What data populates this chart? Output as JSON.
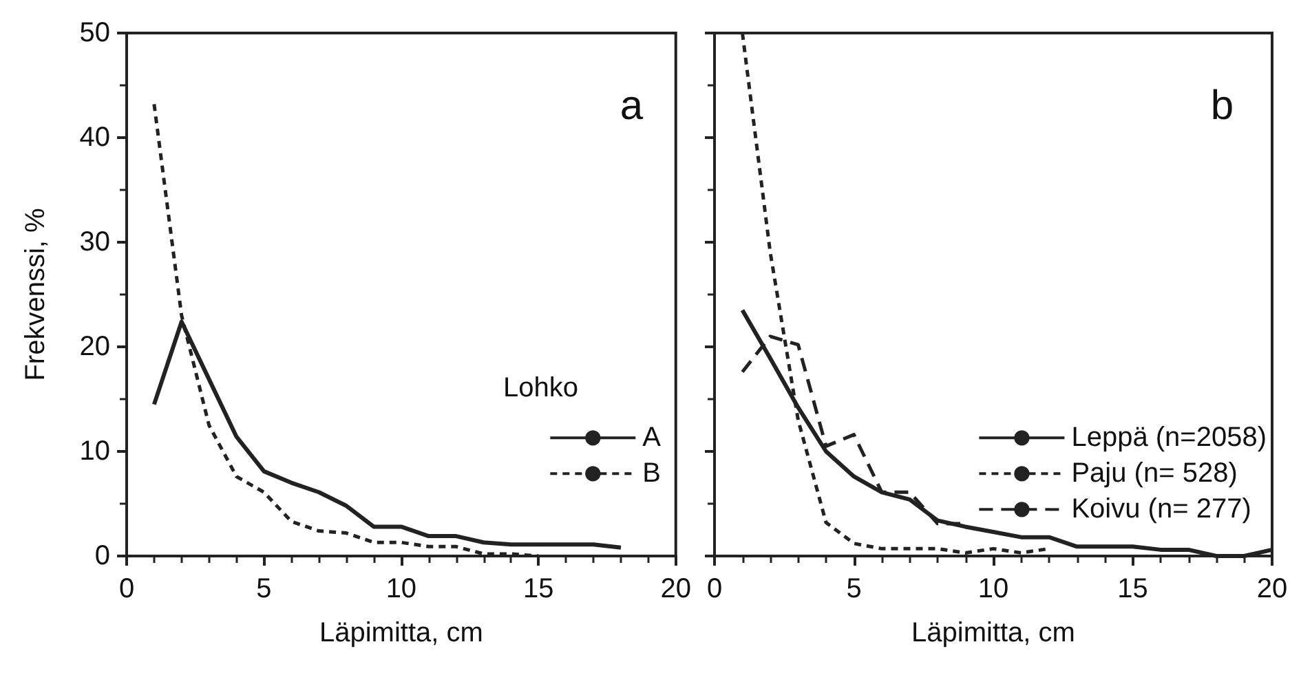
{
  "chart_data": [
    {
      "type": "line",
      "xlabel": "Läpimitta, cm",
      "ylabel": "Frekvenssi, %",
      "legend_title": "Lohko",
      "legend": "right",
      "marker": "none",
      "annotations": [
        "a"
      ],
      "xlim": [
        0,
        20
      ],
      "xticks": [
        0,
        5,
        10,
        15,
        20
      ],
      "ylim": [
        0,
        50
      ],
      "yticks": [
        0,
        10,
        20,
        30,
        40,
        50
      ],
      "series": [
        {
          "name": "A",
          "color": "#222222",
          "line_style": "solid",
          "x": [
            1,
            2,
            3,
            4,
            5,
            6,
            7,
            8,
            9,
            10,
            11,
            12,
            13,
            14,
            15,
            16,
            17,
            18
          ],
          "values": [
            14.5,
            22.4,
            16.9,
            11.4,
            8.1,
            7,
            6.1,
            4.8,
            2.8,
            2.8,
            1.9,
            1.9,
            1.3,
            1.1,
            1.1,
            1.1,
            1.1,
            0.8
          ]
        },
        {
          "name": "B",
          "color": "#222222",
          "line_style": "dotted",
          "x": [
            1,
            2,
            3,
            4,
            5,
            6,
            7,
            8,
            9,
            10,
            11,
            12,
            13,
            14,
            15
          ],
          "values": [
            43.2,
            23,
            12.5,
            7.6,
            6.1,
            3.3,
            2.4,
            2.2,
            1.3,
            1.3,
            0.9,
            0.9,
            0.2,
            0.2,
            0
          ]
        }
      ]
    },
    {
      "type": "line",
      "xlabel": "Läpimitta, cm",
      "legend": "right",
      "marker": "none",
      "annotations": [
        "b"
      ],
      "tick_labels": "x",
      "xlim": [
        0,
        20
      ],
      "xticks": [
        0,
        5,
        10,
        15,
        20
      ],
      "ylim": [
        0,
        50
      ],
      "yticks": [
        0,
        10,
        20,
        30,
        40,
        50
      ],
      "series": [
        {
          "name": "Leppä (n=2058)",
          "color": "#222222",
          "line_style": "solid",
          "x": [
            1,
            2,
            3,
            4,
            5,
            6,
            7,
            8,
            9,
            10,
            11,
            12,
            13,
            14,
            15,
            16,
            17,
            18,
            19,
            20
          ],
          "values": [
            23.5,
            18.9,
            14.2,
            10,
            7.6,
            6.1,
            5.4,
            3.4,
            2.8,
            2.3,
            1.8,
            1.8,
            0.9,
            0.9,
            0.9,
            0.6,
            0.6,
            0,
            0,
            0.6
          ]
        },
        {
          "name": "Paju (n= 528)",
          "color": "#222222",
          "line_style": "dotted",
          "x": [
            1,
            2,
            3,
            4,
            5,
            6,
            7,
            8,
            9,
            10,
            11,
            12
          ],
          "values": [
            50,
            29,
            13,
            3.2,
            1.2,
            0.7,
            0.7,
            0.7,
            0.3,
            0.7,
            0.3,
            0.7
          ]
        },
        {
          "name": "Koivu (n= 277)",
          "color": "#222222",
          "line_style": "dashed",
          "x": [
            1,
            2,
            3,
            4,
            5,
            6,
            7,
            8,
            9
          ],
          "values": [
            17.6,
            21,
            20.2,
            10.5,
            11.6,
            6.1,
            6.1,
            3.1,
            3.1
          ]
        }
      ]
    }
  ]
}
